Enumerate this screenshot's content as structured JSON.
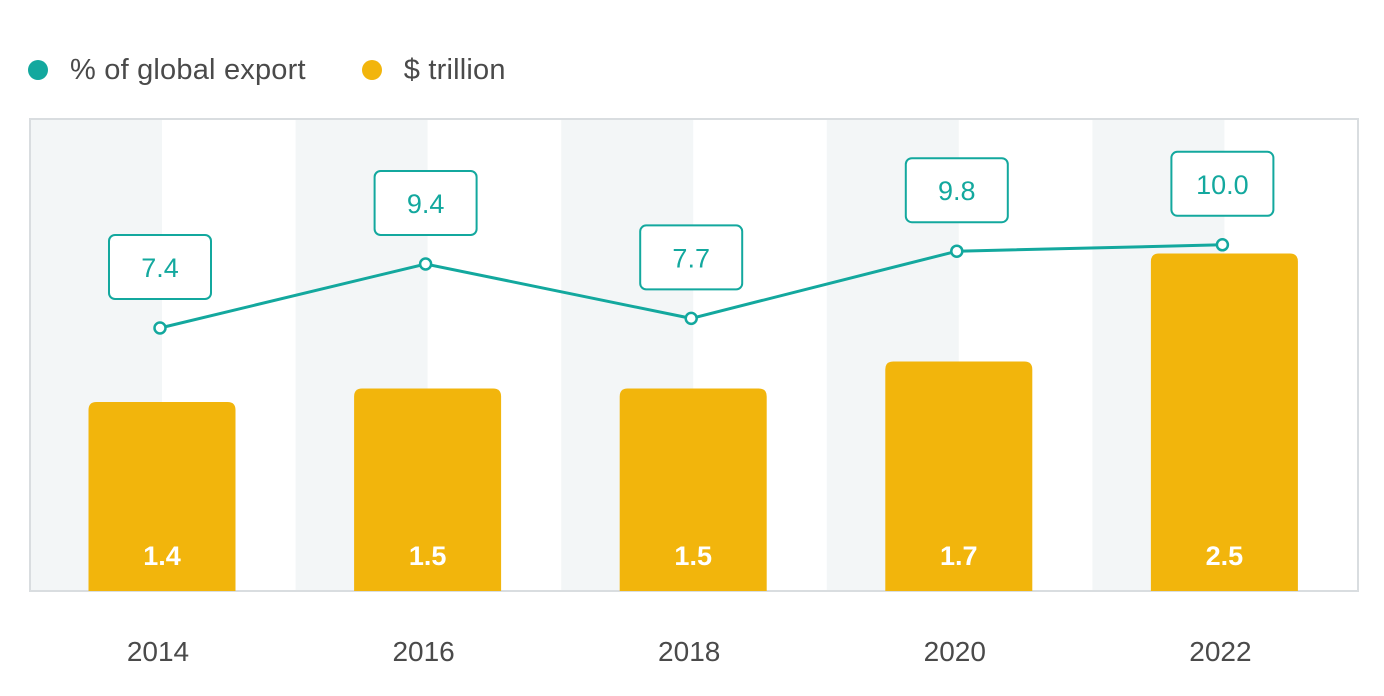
{
  "colors": {
    "line": "#13a89e",
    "bar": "#f2b50c",
    "band": "#f3f6f7",
    "frame": "#d9dde0",
    "text": "#4a4a4a"
  },
  "chart_data": {
    "type": "bar",
    "categories": [
      "2014",
      "2016",
      "2018",
      "2020",
      "2022"
    ],
    "series": [
      {
        "name": "% of global export",
        "type": "line",
        "values": [
          7.4,
          9.4,
          7.7,
          9.8,
          10.0
        ],
        "labels": [
          "7.4",
          "9.4",
          "7.7",
          "9.8",
          "10.0"
        ]
      },
      {
        "name": "$ trillion",
        "type": "bar",
        "values": [
          1.4,
          1.5,
          1.5,
          1.7,
          2.5
        ],
        "labels": [
          "1.4",
          "1.5",
          "1.5",
          "1.7",
          "2.5"
        ]
      }
    ],
    "legend": "top-left",
    "grid": false
  }
}
